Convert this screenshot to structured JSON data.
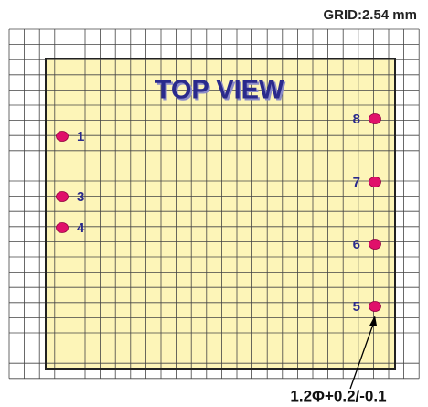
{
  "grid_label": "GRID:2.54 mm",
  "view_label": "TOP VIEW",
  "pins": [
    {
      "label": "1",
      "side": "left"
    },
    {
      "label": "3",
      "side": "left"
    },
    {
      "label": "4",
      "side": "left"
    },
    {
      "label": "8",
      "side": "right"
    },
    {
      "label": "7",
      "side": "right"
    },
    {
      "label": "6",
      "side": "right"
    },
    {
      "label": "5",
      "side": "right"
    }
  ],
  "hole_label": "1.2Φ+0.2/-0.1"
}
